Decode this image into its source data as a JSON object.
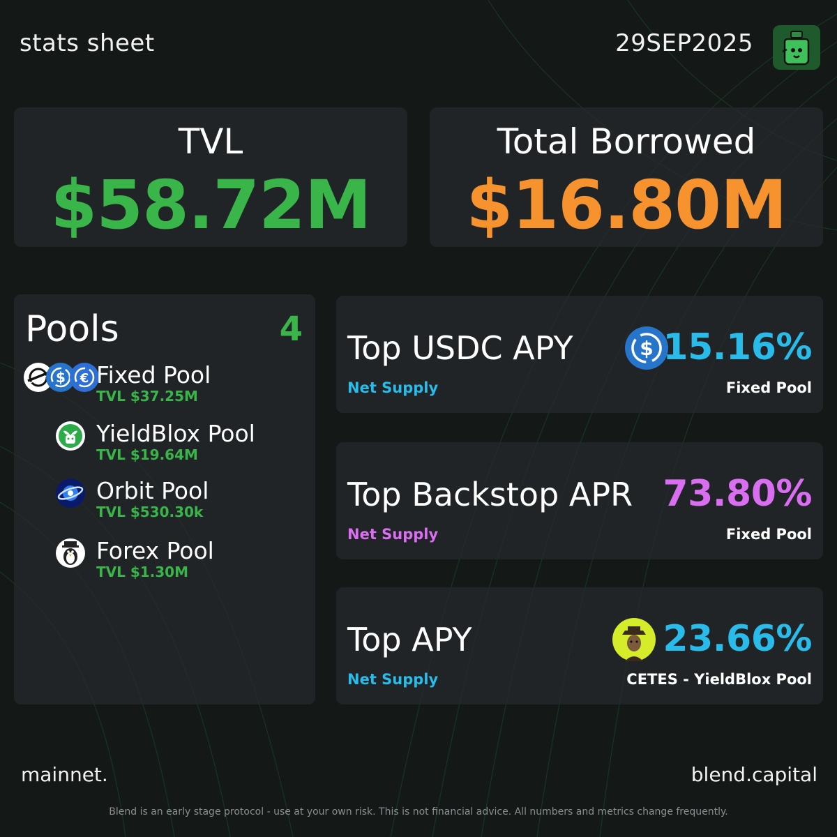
{
  "header": {
    "title": "stats sheet",
    "date": "29SEP2025",
    "logo_icon": "blend-jar-logo-icon"
  },
  "summary": {
    "tvl_label": "TVL",
    "tvl_value": "$58.72M",
    "borrowed_label": "Total Borrowed",
    "borrowed_value": "$16.80M"
  },
  "pools": {
    "title": "Pools",
    "count": "4",
    "items": [
      {
        "name": "Fixed Pool",
        "tvl": "TVL $37.25M",
        "icon": "stellar-usdc-eurc-icons"
      },
      {
        "name": "YieldBlox Pool",
        "tvl": "TVL $19.64M",
        "icon": "yieldblox-sprout-icon"
      },
      {
        "name": "Orbit Pool",
        "tvl": "TVL $530.30k",
        "icon": "orbit-planet-icon"
      },
      {
        "name": "Forex Pool",
        "tvl": "TVL $1.30M",
        "icon": "penguin-icon"
      }
    ]
  },
  "metrics": [
    {
      "label": "Top USDC APY",
      "value": "15.16%",
      "sub": "Net Supply",
      "pool": "Fixed Pool",
      "icon": "usdc-icon"
    },
    {
      "label": "Top Backstop APR",
      "value": "73.80%",
      "sub": "Net Supply",
      "pool": "Fixed Pool"
    },
    {
      "label": "Top APY",
      "value": "23.66%",
      "sub": "Net Supply",
      "pool": "CETES - YieldBlox Pool",
      "icon": "cetes-token-icon"
    }
  ],
  "colors": {
    "background": "#141817",
    "green": "#39b54a",
    "orange": "#f7932e",
    "cyan": "#29bbea",
    "purple": "#d96ef0"
  },
  "footer": {
    "left": "mainnet.",
    "right": "blend.capital",
    "disclaimer": "Blend is an early stage protocol - use at your own risk. This is not financial advice. All numbers and metrics change frequently."
  }
}
